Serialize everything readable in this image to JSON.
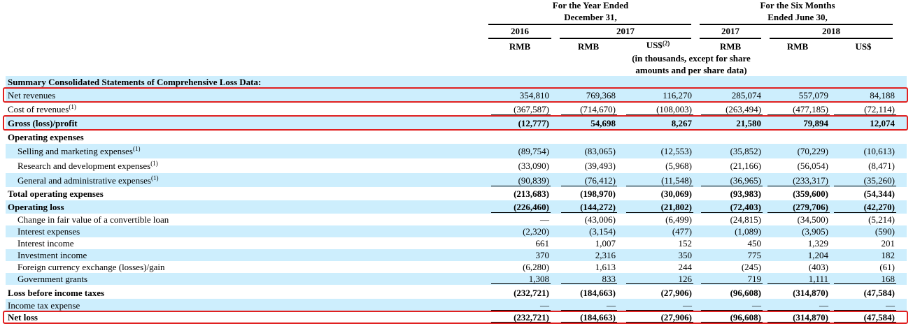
{
  "header": {
    "group_year_line1": "For the Year Ended",
    "group_year_line2": "December 31,",
    "group_six_line1": "For the Six Months",
    "group_six_line2": "Ended June 30,",
    "years": [
      "2016",
      "2017",
      "2017",
      "2018"
    ],
    "currencies": [
      "RMB",
      "RMB",
      "US$",
      "RMB",
      "RMB",
      "US$"
    ],
    "usd_note_mark": "(2)",
    "note_line1": "(in thousands, except for share",
    "note_line2": "amounts and per share data)"
  },
  "section_title": "Summary Consolidated Statements of Comprehensive Loss Data:",
  "rows": [
    {
      "label": "Net revenues",
      "values": [
        "354,810",
        "769,368",
        "116,270",
        "285,074",
        "557,079",
        "84,188"
      ]
    },
    {
      "label": "Cost of revenues",
      "sup": "(1)",
      "values": [
        "(367,587)",
        "(714,670)",
        "(108,003)",
        "(263,494)",
        "(477,185)",
        "(72,114)"
      ]
    },
    {
      "label": "Gross (loss)/profit",
      "values": [
        "(12,777)",
        "54,698",
        "8,267",
        "21,580",
        "79,894",
        "12,074"
      ]
    },
    {
      "label": "Operating expenses",
      "values": [
        "",
        "",
        "",
        "",
        "",
        ""
      ]
    },
    {
      "label": "Selling and marketing expenses",
      "sup": "(1)",
      "values": [
        "(89,754)",
        "(83,065)",
        "(12,553)",
        "(35,852)",
        "(70,229)",
        "(10,613)"
      ]
    },
    {
      "label": "Research and development expenses",
      "sup": "(1)",
      "values": [
        "(33,090)",
        "(39,493)",
        "(5,968)",
        "(21,166)",
        "(56,054)",
        "(8,471)"
      ]
    },
    {
      "label": "General and administrative expenses",
      "sup": "(1)",
      "values": [
        "(90,839)",
        "(76,412)",
        "(11,548)",
        "(36,965)",
        "(233,317)",
        "(35,260)"
      ]
    },
    {
      "label": "Total operating expenses",
      "values": [
        "(213,683)",
        "(198,970)",
        "(30,069)",
        "(93,983)",
        "(359,600)",
        "(54,344)"
      ]
    },
    {
      "label": "Operating loss",
      "values": [
        "(226,460)",
        "(144,272)",
        "(21,802)",
        "(72,403)",
        "(279,706)",
        "(42,270)"
      ]
    },
    {
      "label": "Change in fair value of a convertible loan",
      "values": [
        "—",
        "(43,006)",
        "(6,499)",
        "(24,815)",
        "(34,500)",
        "(5,214)"
      ]
    },
    {
      "label": "Interest expenses",
      "values": [
        "(2,320)",
        "(3,154)",
        "(477)",
        "(1,089)",
        "(3,905)",
        "(590)"
      ]
    },
    {
      "label": "Interest income",
      "values": [
        "661",
        "1,007",
        "152",
        "450",
        "1,329",
        "201"
      ]
    },
    {
      "label": "Investment income",
      "values": [
        "370",
        "2,316",
        "350",
        "775",
        "1,204",
        "182"
      ]
    },
    {
      "label": "Foreign currency exchange (losses)/gain",
      "values": [
        "(6,280)",
        "1,613",
        "244",
        "(245)",
        "(403)",
        "(61)"
      ]
    },
    {
      "label": "Government grants",
      "values": [
        "1,308",
        "833",
        "126",
        "719",
        "1,111",
        "168"
      ]
    },
    {
      "label": "Loss before income taxes",
      "values": [
        "(232,721)",
        "(184,663)",
        "(27,906)",
        "(96,608)",
        "(314,870)",
        "(47,584)"
      ]
    },
    {
      "label": "Income tax expense",
      "values": [
        "—",
        "—",
        "—",
        "—",
        "—",
        "—"
      ]
    },
    {
      "label": "Net loss",
      "values": [
        "(232,721)",
        "(184,663)",
        "(27,906)",
        "(96,608)",
        "(314,870)",
        "(47,584)"
      ]
    }
  ],
  "chart_data": {
    "type": "table",
    "columns": [
      "2016 RMB",
      "2017 RMB",
      "2017 US$",
      "2017 RMB (six months)",
      "2018 RMB (six months)",
      "2018 US$ (six months)"
    ],
    "highlighted_rows": [
      "Net revenues",
      "Gross (loss)/profit",
      "Net loss"
    ],
    "highlight_color": "#e02020",
    "shading_color": "#cdeefd"
  }
}
